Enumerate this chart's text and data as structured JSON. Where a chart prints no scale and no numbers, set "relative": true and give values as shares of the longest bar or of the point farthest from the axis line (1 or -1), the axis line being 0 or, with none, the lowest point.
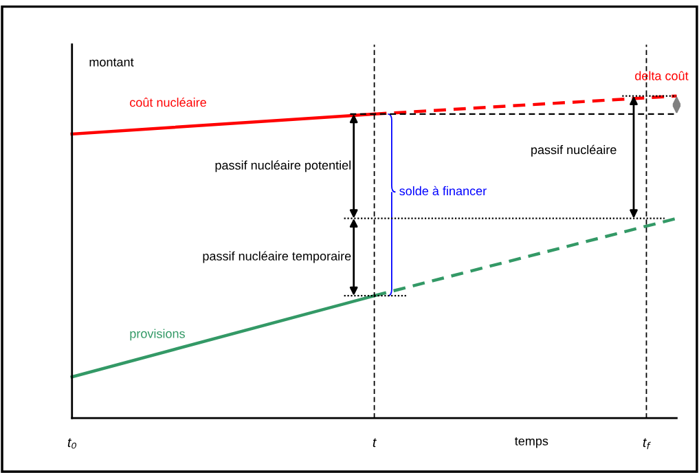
{
  "chart_data": {
    "type": "line",
    "relative": true,
    "xlabel": "temps",
    "ylabel": "montant",
    "categories": [
      "t₀",
      null,
      null,
      null,
      null,
      null,
      null,
      null,
      null,
      null,
      "t",
      null,
      null,
      null,
      null,
      null,
      null,
      null,
      null,
      "t$_{f}$",
      null
    ],
    "series": [
      {
        "name": "coût nucléaire",
        "color": "#ff0000",
        "line_style": "solid",
        "values": [
          0.882,
          null,
          null,
          null,
          null,
          null,
          null,
          null,
          null,
          null,
          0.944,
          null,
          null,
          null,
          null,
          null,
          null,
          null,
          null,
          null,
          null
        ]
      },
      {
        "color": "#ff0000",
        "line_style": "dashed",
        "values": [
          null,
          null,
          null,
          null,
          null,
          null,
          null,
          null,
          null,
          null,
          0.944,
          null,
          null,
          null,
          null,
          null,
          null,
          null,
          null,
          null,
          1.0
        ]
      },
      {
        "name": "provisions",
        "color": "#339966",
        "line_style": "solid",
        "values": [
          0.128,
          null,
          null,
          null,
          null,
          null,
          null,
          null,
          null,
          null,
          0.38,
          null,
          null,
          null,
          null,
          null,
          null,
          null,
          null,
          null,
          null
        ]
      },
      {
        "color": "#339966",
        "line_style": "dashed",
        "values": [
          null,
          null,
          null,
          null,
          null,
          null,
          null,
          null,
          null,
          null,
          0.38,
          null,
          null,
          null,
          null,
          null,
          null,
          null,
          null,
          null,
          0.62
        ]
      }
    ],
    "ref_lines": [
      {
        "axis": "x",
        "value": "t",
        "line_style": "dashed",
        "color": "#000000"
      },
      {
        "axis": "x",
        "value": "t$_{f}$",
        "line_style": "dashed",
        "color": "#000000"
      },
      {
        "axis": "y",
        "value": 0.944,
        "line_style": "dashed",
        "color": "#000000"
      },
      {
        "axis": "y",
        "value": 1.0,
        "line_style": "dotted",
        "color": "#000000"
      },
      {
        "axis": "y",
        "value": 0.62,
        "line_style": "dotted",
        "color": "#000000"
      },
      {
        "axis": "y",
        "value": 0.38,
        "line_style": "dotted",
        "color": "#000000"
      }
    ],
    "annotations": [
      "delta coût",
      "passif nucléaire potentiel",
      "passif nucléaire temporaire",
      "passif nucléaire",
      "solde à financer"
    ],
    "grid": false
  }
}
